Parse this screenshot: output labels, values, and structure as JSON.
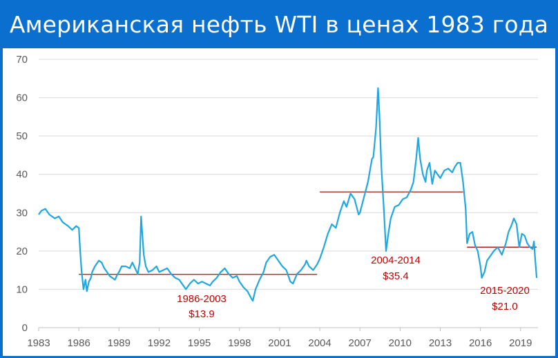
{
  "page": {
    "title": "Американская нефть WTI в ценах 1983 года"
  },
  "colors": {
    "header_bg": "#0a6fce",
    "series": "#1ea7e1",
    "average_lines": "#a31515",
    "annotations": "#c00000",
    "grid": "#d9d9d9",
    "ticks": "#595959"
  },
  "chart_data": {
    "type": "line",
    "title": "Американская нефть WTI в ценах 1983 года",
    "xlabel": "",
    "ylabel": "",
    "xlim": [
      1983,
      2020.3
    ],
    "ylim": [
      0,
      70
    ],
    "grid": "horizontal",
    "legend": "none",
    "x_ticks": [
      "1983",
      "1986",
      "1989",
      "1992",
      "1995",
      "1998",
      "2001",
      "2004",
      "2007",
      "2010",
      "2013",
      "2016",
      "2019"
    ],
    "y_ticks": [
      "0",
      "10",
      "20",
      "30",
      "40",
      "50",
      "60",
      "70"
    ],
    "series": [
      {
        "x": [
          1983.0,
          1983.2,
          1983.5,
          1983.8,
          1984.0,
          1984.2,
          1984.5,
          1984.8,
          1985.0,
          1985.2,
          1985.5,
          1985.8,
          1986.0,
          1986.1,
          1986.2,
          1986.35,
          1986.5,
          1986.6,
          1986.75,
          1986.9,
          1987.0,
          1987.2,
          1987.5,
          1987.7,
          1987.9,
          1988.1,
          1988.3,
          1988.5,
          1988.7,
          1988.9,
          1989.0,
          1989.2,
          1989.5,
          1989.8,
          1990.0,
          1990.2,
          1990.4,
          1990.55,
          1990.65,
          1990.75,
          1990.85,
          1991.0,
          1991.2,
          1991.5,
          1991.8,
          1992.0,
          1992.3,
          1992.6,
          1992.9,
          1993.2,
          1993.5,
          1993.8,
          1994.0,
          1994.3,
          1994.6,
          1994.9,
          1995.2,
          1995.5,
          1995.8,
          1996.0,
          1996.3,
          1996.6,
          1996.9,
          1997.2,
          1997.5,
          1997.8,
          1998.0,
          1998.3,
          1998.6,
          1998.9,
          1999.0,
          1999.2,
          1999.5,
          1999.8,
          2000.0,
          2000.3,
          2000.6,
          2000.9,
          2001.2,
          2001.5,
          2001.8,
          2002.0,
          2002.3,
          2002.6,
          2002.9,
          2003.0,
          2003.2,
          2003.5,
          2003.8,
          2004.0,
          2004.3,
          2004.6,
          2004.9,
          2005.2,
          2005.5,
          2005.8,
          2006.0,
          2006.3,
          2006.6,
          2006.9,
          2007.0,
          2007.3,
          2007.6,
          2007.9,
          2008.0,
          2008.2,
          2008.35,
          2008.45,
          2008.6,
          2008.8,
          2008.95,
          2009.1,
          2009.3,
          2009.6,
          2009.9,
          2010.2,
          2010.5,
          2010.8,
          2011.0,
          2011.2,
          2011.35,
          2011.5,
          2011.7,
          2011.9,
          2012.0,
          2012.2,
          2012.4,
          2012.6,
          2012.8,
          2013.0,
          2013.3,
          2013.6,
          2013.9,
          2014.1,
          2014.3,
          2014.5,
          2014.7,
          2014.9,
          2015.0,
          2015.2,
          2015.4,
          2015.6,
          2015.8,
          2016.0,
          2016.1,
          2016.3,
          2016.5,
          2016.8,
          2017.0,
          2017.3,
          2017.6,
          2017.9,
          2018.1,
          2018.3,
          2018.5,
          2018.7,
          2018.9,
          2019.1,
          2019.3,
          2019.5,
          2019.7,
          2019.9,
          2020.0,
          2020.1,
          2020.2
        ],
        "values": [
          29.5,
          30.5,
          31.0,
          29.5,
          29.0,
          28.5,
          29.0,
          27.5,
          27.0,
          26.5,
          25.5,
          26.5,
          26.0,
          20.0,
          15.0,
          10.0,
          12.5,
          9.5,
          12.0,
          13.0,
          14.5,
          16.0,
          17.5,
          17.0,
          15.5,
          14.5,
          13.5,
          13.0,
          12.5,
          14.0,
          14.5,
          16.0,
          16.0,
          15.5,
          17.0,
          15.5,
          14.0,
          17.0,
          29.0,
          24.0,
          19.0,
          16.0,
          14.5,
          15.0,
          16.0,
          14.5,
          15.0,
          15.5,
          14.0,
          13.0,
          12.5,
          11.0,
          10.0,
          11.5,
          12.5,
          11.5,
          12.0,
          11.5,
          11.0,
          12.0,
          13.0,
          14.5,
          15.5,
          14.0,
          13.0,
          13.5,
          12.0,
          10.5,
          9.5,
          7.5,
          7.0,
          10.0,
          12.5,
          14.5,
          17.0,
          18.5,
          19.0,
          17.5,
          16.0,
          15.0,
          12.0,
          11.5,
          14.0,
          15.0,
          16.5,
          17.5,
          16.0,
          15.0,
          16.5,
          18.0,
          21.0,
          24.5,
          27.0,
          26.0,
          30.0,
          33.0,
          31.5,
          35.0,
          33.5,
          29.5,
          30.0,
          34.0,
          38.0,
          44.0,
          44.5,
          52.0,
          62.5,
          56.0,
          42.0,
          30.0,
          20.0,
          24.0,
          28.5,
          31.5,
          32.0,
          33.5,
          34.0,
          36.0,
          38.0,
          44.0,
          49.5,
          44.0,
          40.0,
          38.0,
          41.0,
          43.0,
          37.5,
          41.0,
          40.0,
          39.0,
          41.0,
          41.5,
          40.5,
          42.0,
          43.0,
          43.0,
          38.0,
          31.0,
          22.0,
          24.5,
          25.0,
          21.5,
          20.0,
          16.0,
          13.0,
          14.5,
          17.5,
          19.0,
          20.0,
          21.0,
          19.0,
          22.0,
          25.0,
          26.5,
          28.5,
          27.0,
          21.0,
          24.5,
          24.0,
          22.0,
          21.0,
          20.5,
          22.5,
          17.5,
          13.0
        ]
      }
    ],
    "averages": [
      {
        "x_start": 1986,
        "x_end": 2003.8,
        "value": 13.9,
        "label_period": "1986-2003",
        "label_value": "$13.9"
      },
      {
        "x_start": 2004,
        "x_end": 2014.7,
        "value": 35.4,
        "label_period": "2004-2014",
        "label_value": "$35.4"
      },
      {
        "x_start": 2015,
        "x_end": 2020.2,
        "value": 21.0,
        "label_period": "2015-2020",
        "label_value": "$21.0"
      }
    ]
  }
}
